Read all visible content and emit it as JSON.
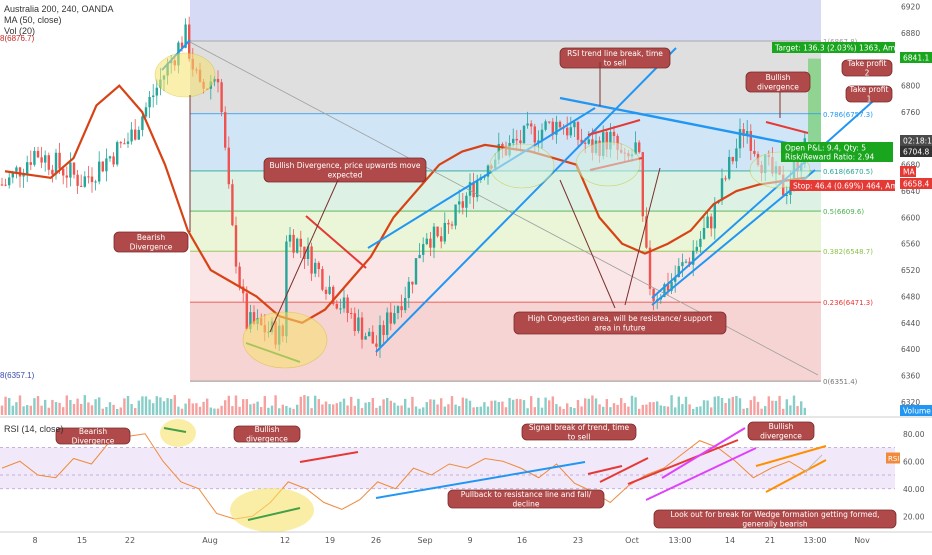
{
  "header": {
    "symbol_line": "Australia 200, 240, OANDA",
    "ma_line": "MA (50, close)",
    "vol_line": "Vol (20)",
    "left_price_top": "8(6876.7)",
    "left_price_bottom": "8(6357.1)",
    "rsi_label": "RSI (14, close)"
  },
  "chart_data": [
    {
      "type": "candlestick",
      "title": "Australia 200, 240, OANDA",
      "ylim": [
        6300,
        6930
      ],
      "y_ticks": [
        6320,
        6360,
        6400,
        6440,
        6480,
        6520,
        6560,
        6600,
        6640,
        6680,
        6720,
        6760,
        6800,
        6840,
        6880,
        6920
      ],
      "x_ticks": [
        "8",
        "15",
        "22",
        "Aug",
        "12",
        "19",
        "26",
        "Sep",
        "9",
        "16",
        "23",
        "Oct",
        "13:00",
        "14",
        "21",
        "13:00",
        "Nov"
      ],
      "key_points": [
        {
          "x": "Jul 1",
          "y": 6650
        },
        {
          "x": "Jul 8",
          "y": 6700
        },
        {
          "x": "Jul 15",
          "y": 6655
        },
        {
          "x": "Jul 22",
          "y": 6720
        },
        {
          "x": "Jul 26",
          "y": 6878
        },
        {
          "x": "Jul 29",
          "y": 6790
        },
        {
          "x": "Aug 1",
          "y": 6820
        },
        {
          "x": "Aug 5",
          "y": 6580
        },
        {
          "x": "Aug 8",
          "y": 6440
        },
        {
          "x": "Aug 12",
          "y": 6420
        },
        {
          "x": "Aug 15",
          "y": 6590
        },
        {
          "x": "Aug 19",
          "y": 6560
        },
        {
          "x": "Aug 22",
          "y": 6470
        },
        {
          "x": "Aug 24",
          "y": 6405
        },
        {
          "x": "Aug 27",
          "y": 6450
        },
        {
          "x": "Sep 2",
          "y": 6500
        },
        {
          "x": "Sep 5",
          "y": 6580
        },
        {
          "x": "Sep 9",
          "y": 6560
        },
        {
          "x": "Sep 12",
          "y": 6640
        },
        {
          "x": "Sep 16",
          "y": 6690
        },
        {
          "x": "Sep 20",
          "y": 6730
        },
        {
          "x": "Sep 23",
          "y": 6745
        },
        {
          "x": "Sep 25",
          "y": 6705
        },
        {
          "x": "Sep 27",
          "y": 6720
        },
        {
          "x": "Sep 30",
          "y": 6680
        },
        {
          "x": "Oct 1",
          "y": 6710
        },
        {
          "x": "Oct 2",
          "y": 6560
        },
        {
          "x": "Oct 3",
          "y": 6480
        },
        {
          "x": "Oct 5",
          "y": 6500
        },
        {
          "x": "Oct 8",
          "y": 6540
        },
        {
          "x": "Oct 11",
          "y": 6600
        },
        {
          "x": "Oct 14",
          "y": 6680
        },
        {
          "x": "Oct 15",
          "y": 6740
        },
        {
          "x": "Oct 17",
          "y": 6690
        },
        {
          "x": "Oct 19",
          "y": 6660
        },
        {
          "x": "Oct 21",
          "y": 6640
        },
        {
          "x": "Oct 23",
          "y": 6680
        },
        {
          "x": "Oct 25",
          "y": 6705
        }
      ],
      "ma_series": {
        "name": "MA",
        "values": [
          6670,
          6665,
          6660,
          6690,
          6770,
          6800,
          6760,
          6680,
          6580,
          6520,
          6500,
          6480,
          6450,
          6440,
          6460,
          6500,
          6540,
          6600,
          6640,
          6680,
          6700,
          6710,
          6705,
          6700,
          6690,
          6680,
          6600,
          6560,
          6545,
          6560,
          6580,
          6620,
          6640,
          6650,
          6655,
          6660
        ]
      },
      "fibonacci": [
        {
          "label": "1(6867.8)",
          "value": 6867.8,
          "color": "#d9d9d9"
        },
        {
          "label": "0.786(6757.3)",
          "value": 6757.3,
          "color": "#c8e0f4"
        },
        {
          "label": "0.618(6670.5)",
          "value": 6670.5,
          "color": "#d7f0e0"
        },
        {
          "label": "0.5(6609.6)",
          "value": 6609.6,
          "color": "#e6f5d0"
        },
        {
          "label": "0.382(6548.7)",
          "value": 6548.7,
          "color": "#f9e2e2"
        },
        {
          "label": "0.236(6471.3)",
          "value": 6471.3,
          "color": "#f6cdcd"
        },
        {
          "label": "0(6351.4)",
          "value": 6351.4,
          "color": "#ffffff"
        }
      ],
      "price_labels": [
        {
          "text": "02:18:16",
          "color": "#4a4a4a"
        },
        {
          "text": "6704.8",
          "color": "#333333"
        },
        {
          "text": "MA",
          "color": "#e53935"
        },
        {
          "text": "6841.1",
          "color": "#19a51d"
        },
        {
          "text": "6658.4",
          "color": "#e53935"
        },
        {
          "text": "Volume",
          "color": "#2196f3"
        }
      ],
      "position": {
        "target": "Target: 136.3 (2.03%) 1363, Amount:",
        "open_pl": "Open P&L: 9.4, Qty: 5",
        "risk_reward": "Risk/Reward Ratio: 2.94",
        "stop": "Stop: 46.4 (0.69%) 464, Amount:"
      },
      "annotations": [
        "RSI trend line break, time to sell",
        "Bullish divergence",
        "Take profit 2",
        "Take profit 1",
        "Bullish Divergence, price upwards move expected",
        "Bearish Divergence",
        "High Congestion area, will be resistance/ support area in future"
      ]
    },
    {
      "type": "line",
      "title": "RSI (14, close)",
      "ylim": [
        10,
        90
      ],
      "y_ticks": [
        20,
        40,
        60,
        80
      ],
      "band": [
        40,
        70
      ],
      "last_label": "RSI",
      "series": [
        {
          "values": [
            55,
            60,
            50,
            48,
            62,
            58,
            74,
            78,
            80,
            60,
            45,
            40,
            22,
            18,
            20,
            30,
            45,
            40,
            30,
            25,
            32,
            45,
            40,
            55,
            50,
            58,
            55,
            62,
            60,
            55,
            48,
            58,
            44,
            38,
            30,
            42,
            50,
            55,
            65,
            75,
            70,
            60,
            48,
            55,
            60,
            52
          ]
        }
      ],
      "annotations": [
        "Bearish Divergence",
        "Bullish divergence",
        "Signal break of trend, time to sell",
        "Bullish divergence",
        "Pullback to resistance line and fall/ decline",
        "Look out for break for Wedge formation getting formed, generally bearish"
      ]
    }
  ]
}
